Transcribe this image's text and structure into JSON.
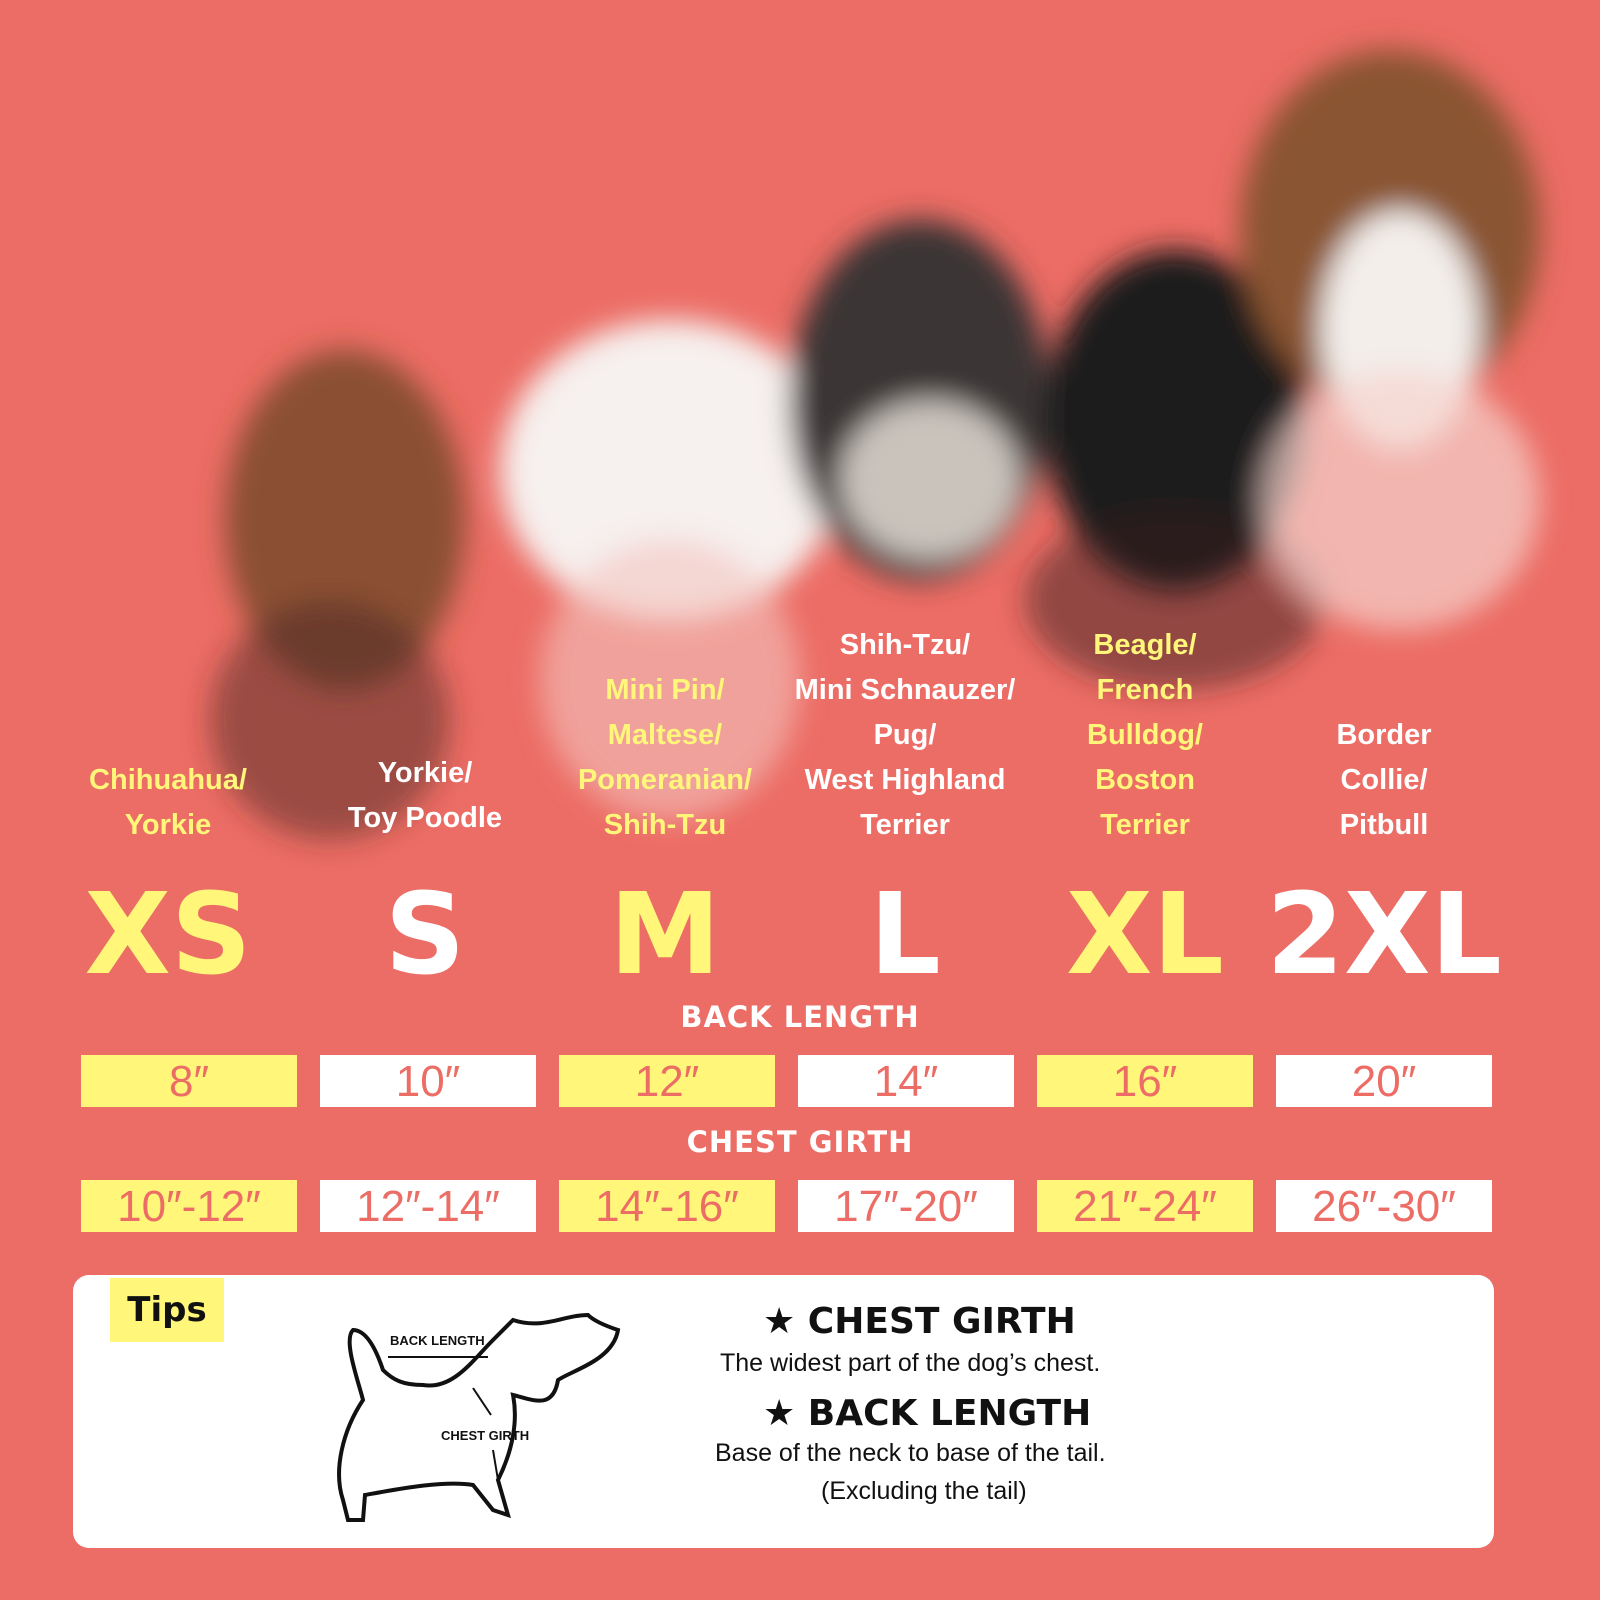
{
  "colors": {
    "background": "#ec6d65",
    "yellow": "#fff67a",
    "white": "#ffffff"
  },
  "sizes": [
    {
      "size": "XS",
      "breeds": [
        "Chihuahua/",
        "Yorkie"
      ],
      "back_length": "8″",
      "chest_girth": "10″-12″",
      "accent": "yellow"
    },
    {
      "size": "S",
      "breeds": [
        "Yorkie/",
        "Toy Poodle"
      ],
      "back_length": "10″",
      "chest_girth": "12″-14″",
      "accent": "white"
    },
    {
      "size": "M",
      "breeds": [
        "Mini Pin/",
        "Maltese/",
        "Pomeranian/",
        "Shih-Tzu"
      ],
      "back_length": "12″",
      "chest_girth": "14″-16″",
      "accent": "yellow"
    },
    {
      "size": "L",
      "breeds": [
        "Shih-Tzu/",
        "Mini Schnauzer/",
        "Pug/",
        "West Highland",
        "Terrier"
      ],
      "back_length": "14″",
      "chest_girth": "17″-20″",
      "accent": "white"
    },
    {
      "size": "XL",
      "breeds": [
        "Beagle/",
        "French",
        "Bulldog/",
        "Boston",
        "Terrier"
      ],
      "back_length": "16″",
      "chest_girth": "21″-24″",
      "accent": "yellow"
    },
    {
      "size": "2XL",
      "breeds": [
        "Border",
        "Collie/",
        "Pitbull"
      ],
      "back_length": "20″",
      "chest_girth": "26″-30″",
      "accent": "white"
    }
  ],
  "labels": {
    "back_length": "BACK LENGTH",
    "chest_girth": "CHEST GIRTH"
  },
  "tips": {
    "title": "Tips",
    "diagram_back_length": "BACK LENGTH",
    "diagram_chest_girth": "CHEST GIRTH",
    "chest_heading": "★ CHEST GIRTH",
    "chest_text": "The widest part of the dog’s chest.",
    "back_heading": "★ BACK LENGTH",
    "back_text": "Base of the neck to base of the tail.",
    "back_note": "(Excluding the tail)"
  }
}
